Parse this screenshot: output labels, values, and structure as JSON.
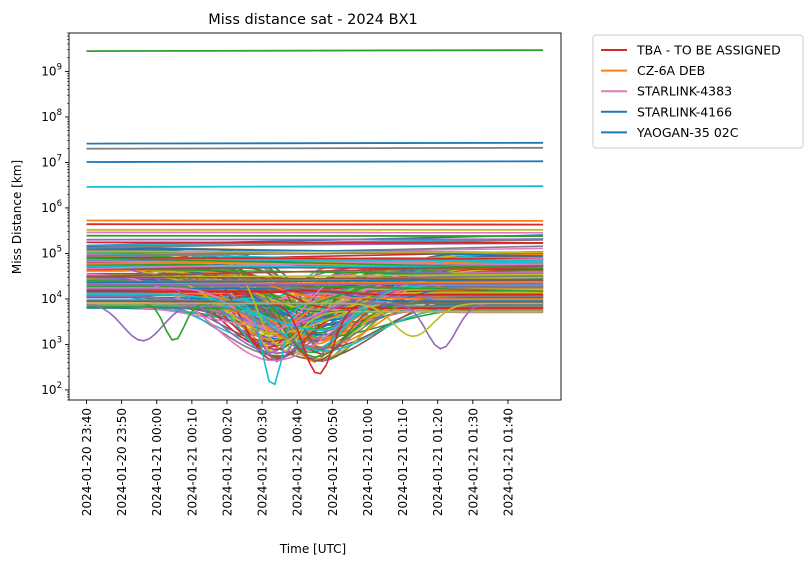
{
  "chart_data": {
    "type": "line",
    "title": "Miss distance sat - 2024 BX1",
    "xlabel": "Time [UTC]",
    "ylabel": "Miss Distance [km]",
    "yscale": "log",
    "ylim": [
      60,
      7000000000
    ],
    "x_tick_labels": [
      "2024-01-20 23:40",
      "2024-01-20 23:50",
      "2024-01-21 00:00",
      "2024-01-21 00:10",
      "2024-01-21 00:20",
      "2024-01-21 00:30",
      "2024-01-21 00:40",
      "2024-01-21 00:50",
      "2024-01-21 01:00",
      "2024-01-21 01:10",
      "2024-01-21 01:20",
      "2024-01-21 01:30",
      "2024-01-21 01:40"
    ],
    "y_tick_labels": [
      {
        "value": 100,
        "base": "10",
        "exp": "2"
      },
      {
        "value": 1000,
        "base": "10",
        "exp": "3"
      },
      {
        "value": 10000,
        "base": "10",
        "exp": "4"
      },
      {
        "value": 100000,
        "base": "10",
        "exp": "5"
      },
      {
        "value": 1000000,
        "base": "10",
        "exp": "6"
      },
      {
        "value": 10000000,
        "base": "10",
        "exp": "7"
      },
      {
        "value": 100000000,
        "base": "10",
        "exp": "8"
      },
      {
        "value": 1000000000,
        "base": "10",
        "exp": "9"
      }
    ],
    "x_time_range": [
      "2024-01-20 23:40",
      "2024-01-21 01:50"
    ],
    "legend": {
      "placement": "outside-upper-right",
      "entries": [
        {
          "name": "TBA - TO BE ASSIGNED",
          "color": "#d62728"
        },
        {
          "name": "CZ-6A DEB",
          "color": "#ff7f0e"
        },
        {
          "name": "STARLINK-4383",
          "color": "#e377c2"
        },
        {
          "name": "STARLINK-4166",
          "color": "#1f77b4"
        },
        {
          "name": "YAOGAN-35 02C",
          "color": "#1f77b4"
        }
      ]
    },
    "palette": [
      "#1f77b4",
      "#ff7f0e",
      "#2ca02c",
      "#d62728",
      "#9467bd",
      "#8c564b",
      "#e377c2",
      "#7f7f7f",
      "#bcbd22",
      "#17becf"
    ],
    "flat_series": [
      {
        "start": 2800000000,
        "end": 2950000000,
        "color": "#2ca02c"
      },
      {
        "start": 26000000,
        "end": 27000000,
        "color": "#1f77b4"
      },
      {
        "start": 20000000,
        "end": 21000000,
        "color": "#7f7f7f"
      },
      {
        "start": 10200000,
        "end": 10600000,
        "color": "#1f77b4"
      },
      {
        "start": 2900000,
        "end": 3000000,
        "color": "#17becf"
      },
      {
        "start": 530000,
        "end": 520000,
        "color": "#ff7f0e"
      },
      {
        "start": 440000,
        "end": 430000,
        "color": "#d62728"
      },
      {
        "start": 330000,
        "end": 330000,
        "color": "#bcbd22"
      },
      {
        "start": 290000,
        "end": 285000,
        "color": "#e377c2"
      },
      {
        "start": 245000,
        "end": 240000,
        "color": "#2ca02c"
      },
      {
        "start": 200000,
        "end": 205000,
        "color": "#9467bd"
      },
      {
        "start": 175000,
        "end": 170000,
        "color": "#d62728"
      }
    ],
    "approach_minima": [
      {
        "time": "2024-01-21 00:33",
        "min_km": 120,
        "color": "#17becf"
      },
      {
        "time": "2024-01-21 00:46",
        "min_km": 220,
        "color": "#d62728"
      },
      {
        "time": "2024-01-20 23:56",
        "min_km": 1200,
        "color": "#9467bd"
      },
      {
        "time": "2024-01-21 00:05",
        "min_km": 1200,
        "color": "#2ca02c"
      },
      {
        "time": "2024-01-21 01:21",
        "min_km": 800,
        "color": "#9467bd"
      },
      {
        "time": "2024-01-21 01:13",
        "min_km": 1500,
        "color": "#bcbd22"
      }
    ]
  }
}
